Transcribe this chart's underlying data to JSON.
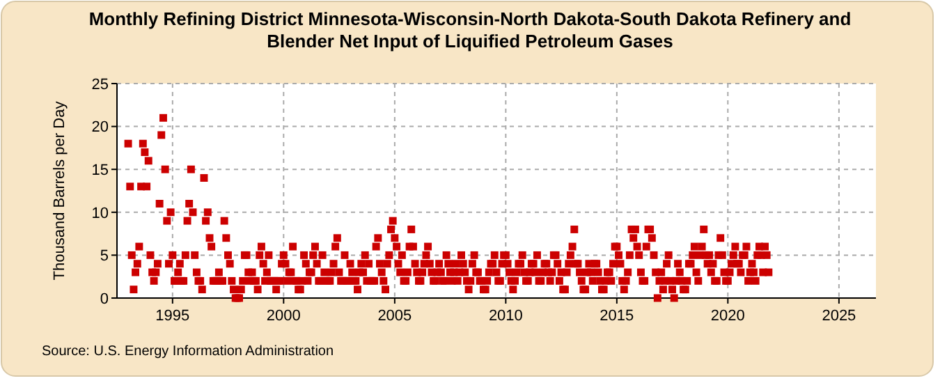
{
  "chart_data": {
    "type": "scatter",
    "title": "Monthly Refining District Minnesota-Wisconsin-North Dakota-South Dakota Refinery and Blender Net Input of Liquified Petroleum Gases",
    "ylabel": "Thousand Barrels per Day",
    "annotations": [
      "Source: U.S. Energy Information Administration"
    ],
    "marker": "square",
    "grid": true,
    "xlim": [
      "1992-07",
      "2026-09"
    ],
    "xticks": [
      {
        "value": "1995",
        "label": "1995"
      },
      {
        "value": "2000",
        "label": "2000"
      },
      {
        "value": "2005",
        "label": "2005"
      },
      {
        "value": "2010",
        "label": "2010"
      },
      {
        "value": "2015",
        "label": "2015"
      },
      {
        "value": "2020",
        "label": "2020"
      },
      {
        "value": "2025",
        "label": "2025"
      }
    ],
    "ylim": [
      0,
      25
    ],
    "yticks": [
      0,
      5,
      10,
      15,
      20,
      25
    ],
    "x": [
      "1993-01",
      "1993-02",
      "1993-03",
      "1993-04",
      "1993-05",
      "1993-06",
      "1993-07",
      "1993-08",
      "1993-09",
      "1993-10",
      "1993-11",
      "1993-12",
      "1994-01",
      "1994-02",
      "1994-03",
      "1994-04",
      "1994-05",
      "1994-06",
      "1994-07",
      "1994-08",
      "1994-09",
      "1994-10",
      "1994-11",
      "1994-12",
      "1995-01",
      "1995-02",
      "1995-03",
      "1995-04",
      "1995-05",
      "1995-06",
      "1995-07",
      "1995-08",
      "1995-09",
      "1995-10",
      "1995-11",
      "1995-12",
      "1996-01",
      "1996-02",
      "1996-03",
      "1996-04",
      "1996-05",
      "1996-06",
      "1996-07",
      "1996-08",
      "1996-09",
      "1996-10",
      "1996-11",
      "1996-12",
      "1997-01",
      "1997-02",
      "1997-03",
      "1997-04",
      "1997-05",
      "1997-06",
      "1997-07",
      "1997-08",
      "1997-09",
      "1997-10",
      "1997-11",
      "1997-12",
      "1998-01",
      "1998-02",
      "1998-03",
      "1998-04",
      "1998-05",
      "1998-06",
      "1998-07",
      "1998-08",
      "1998-09",
      "1998-10",
      "1998-11",
      "1998-12",
      "1999-01",
      "1999-02",
      "1999-03",
      "1999-04",
      "1999-05",
      "1999-06",
      "1999-07",
      "1999-08",
      "1999-09",
      "1999-10",
      "1999-11",
      "1999-12",
      "2000-01",
      "2000-02",
      "2000-03",
      "2000-04",
      "2000-05",
      "2000-06",
      "2000-07",
      "2000-08",
      "2000-09",
      "2000-10",
      "2000-11",
      "2000-12",
      "2001-01",
      "2001-02",
      "2001-03",
      "2001-04",
      "2001-05",
      "2001-06",
      "2001-07",
      "2001-08",
      "2001-09",
      "2001-10",
      "2001-11",
      "2001-12",
      "2002-01",
      "2002-02",
      "2002-03",
      "2002-04",
      "2002-05",
      "2002-06",
      "2002-07",
      "2002-08",
      "2002-09",
      "2002-10",
      "2002-11",
      "2002-12",
      "2003-01",
      "2003-02",
      "2003-03",
      "2003-04",
      "2003-05",
      "2003-06",
      "2003-07",
      "2003-08",
      "2003-09",
      "2003-10",
      "2003-11",
      "2003-12",
      "2004-01",
      "2004-02",
      "2004-03",
      "2004-04",
      "2004-05",
      "2004-06",
      "2004-07",
      "2004-08",
      "2004-09",
      "2004-10",
      "2004-11",
      "2004-12",
      "2005-01",
      "2005-02",
      "2005-03",
      "2005-04",
      "2005-05",
      "2005-06",
      "2005-07",
      "2005-08",
      "2005-09",
      "2005-10",
      "2005-11",
      "2005-12",
      "2006-01",
      "2006-02",
      "2006-03",
      "2006-04",
      "2006-05",
      "2006-06",
      "2006-07",
      "2006-08",
      "2006-09",
      "2006-10",
      "2006-11",
      "2006-12",
      "2007-01",
      "2007-02",
      "2007-03",
      "2007-04",
      "2007-05",
      "2007-06",
      "2007-07",
      "2007-08",
      "2007-09",
      "2007-10",
      "2007-11",
      "2007-12",
      "2008-01",
      "2008-02",
      "2008-03",
      "2008-04",
      "2008-05",
      "2008-06",
      "2008-07",
      "2008-08",
      "2008-09",
      "2008-10",
      "2008-11",
      "2008-12",
      "2009-01",
      "2009-02",
      "2009-03",
      "2009-04",
      "2009-05",
      "2009-06",
      "2009-07",
      "2009-08",
      "2009-09",
      "2009-10",
      "2009-11",
      "2009-12",
      "2010-01",
      "2010-02",
      "2010-03",
      "2010-04",
      "2010-05",
      "2010-06",
      "2010-07",
      "2010-08",
      "2010-09",
      "2010-10",
      "2010-11",
      "2010-12",
      "2011-01",
      "2011-02",
      "2011-03",
      "2011-04",
      "2011-05",
      "2011-06",
      "2011-07",
      "2011-08",
      "2011-09",
      "2011-10",
      "2011-11",
      "2011-12",
      "2012-01",
      "2012-02",
      "2012-03",
      "2012-04",
      "2012-05",
      "2012-06",
      "2012-07",
      "2012-08",
      "2012-09",
      "2012-10",
      "2012-11",
      "2012-12",
      "2013-01",
      "2013-02",
      "2013-03",
      "2013-04",
      "2013-05",
      "2013-06",
      "2013-07",
      "2013-08",
      "2013-09",
      "2013-10",
      "2013-11",
      "2013-12",
      "2014-01",
      "2014-02",
      "2014-03",
      "2014-04",
      "2014-05",
      "2014-06",
      "2014-07",
      "2014-08",
      "2014-09",
      "2014-10",
      "2014-11",
      "2014-12",
      "2015-01",
      "2015-02",
      "2015-03",
      "2015-04",
      "2015-05",
      "2015-06",
      "2015-07",
      "2015-08",
      "2015-09",
      "2015-10",
      "2015-11",
      "2015-12",
      "2016-01",
      "2016-02",
      "2016-03",
      "2016-04",
      "2016-05",
      "2016-06",
      "2016-07",
      "2016-08",
      "2016-09",
      "2016-10",
      "2016-11",
      "2016-12",
      "2017-01",
      "2017-02",
      "2017-03",
      "2017-04",
      "2017-05",
      "2017-06",
      "2017-07",
      "2017-08",
      "2017-09",
      "2017-10",
      "2017-11",
      "2017-12",
      "2018-01",
      "2018-02",
      "2018-03",
      "2018-04",
      "2018-05",
      "2018-06",
      "2018-07",
      "2018-08",
      "2018-09",
      "2018-10",
      "2018-11",
      "2018-12",
      "2019-01",
      "2019-02",
      "2019-03",
      "2019-04",
      "2019-05",
      "2019-06",
      "2019-07",
      "2019-08",
      "2019-09",
      "2019-10",
      "2019-11",
      "2019-12",
      "2020-01",
      "2020-02",
      "2020-03",
      "2020-04",
      "2020-05",
      "2020-06",
      "2020-07",
      "2020-08",
      "2020-09",
      "2020-10",
      "2020-11",
      "2020-12",
      "2021-01",
      "2021-02",
      "2021-03",
      "2021-04",
      "2021-05",
      "2021-06",
      "2021-07",
      "2021-08",
      "2021-09",
      "2021-10",
      "2021-11"
    ],
    "series": [
      {
        "color": "#cc0000",
        "values": [
          18,
          13,
          5,
          1,
          3,
          4,
          6,
          13,
          18,
          17,
          13,
          16,
          5,
          3,
          2,
          3,
          4,
          11,
          19,
          21,
          15,
          9,
          4,
          10,
          5,
          2,
          2,
          3,
          4,
          2,
          2,
          5,
          9,
          11,
          15,
          10,
          5,
          3,
          2,
          2,
          1,
          14,
          9,
          10,
          7,
          6,
          2,
          2,
          2,
          3,
          2,
          2,
          9,
          7,
          5,
          4,
          2,
          1,
          0,
          0,
          0,
          1,
          2,
          5,
          5,
          3,
          2,
          3,
          2,
          2,
          1,
          5,
          6,
          4,
          2,
          3,
          5,
          2,
          2,
          2,
          1,
          2,
          2,
          4,
          5,
          4,
          2,
          3,
          3,
          6,
          2,
          2,
          1,
          1,
          2,
          5,
          4,
          2,
          3,
          3,
          5,
          6,
          4,
          2,
          2,
          5,
          3,
          2,
          2,
          2,
          3,
          4,
          6,
          7,
          3,
          2,
          2,
          5,
          2,
          2,
          4,
          3,
          2,
          2,
          1,
          3,
          4,
          3,
          5,
          2,
          4,
          2,
          2,
          2,
          6,
          7,
          4,
          3,
          2,
          1,
          4,
          5,
          8,
          9,
          7,
          6,
          4,
          3,
          5,
          2,
          2,
          3,
          6,
          8,
          6,
          4,
          3,
          2,
          2,
          3,
          4,
          5,
          6,
          4,
          3,
          2,
          2,
          3,
          4,
          3,
          2,
          2,
          5,
          4,
          3,
          2,
          3,
          4,
          2,
          3,
          5,
          4,
          3,
          2,
          1,
          2,
          4,
          5,
          3,
          3,
          2,
          2,
          1,
          1,
          2,
          3,
          4,
          4,
          5,
          3,
          2,
          2,
          4,
          5,
          5,
          4,
          3,
          2,
          1,
          2,
          3,
          4,
          4,
          5,
          3,
          2,
          2,
          3,
          4,
          4,
          3,
          5,
          2,
          2,
          3,
          4,
          4,
          3,
          2,
          3,
          5,
          5,
          4,
          2,
          3,
          1,
          1,
          3,
          4,
          5,
          6,
          8,
          4,
          4,
          3,
          2,
          1,
          1,
          3,
          4,
          3,
          2,
          4,
          4,
          3,
          2,
          1,
          1,
          2,
          3,
          3,
          2,
          4,
          6,
          6,
          5,
          4,
          2,
          1,
          2,
          3,
          5,
          8,
          7,
          8,
          6,
          5,
          3,
          2,
          2,
          6,
          8,
          8,
          7,
          5,
          3,
          0,
          2,
          3,
          1,
          2,
          4,
          5,
          2,
          1,
          0,
          2,
          4,
          3,
          2,
          1,
          1,
          2,
          4,
          4,
          5,
          6,
          3,
          2,
          5,
          6,
          8,
          5,
          4,
          5,
          3,
          4,
          2,
          2,
          5,
          7,
          5,
          3,
          2,
          2,
          3,
          4,
          5,
          6,
          4,
          4,
          3,
          5,
          5,
          6,
          2,
          3,
          4,
          3,
          2,
          5,
          6,
          5,
          3,
          6,
          5,
          3
        ]
      }
    ]
  }
}
